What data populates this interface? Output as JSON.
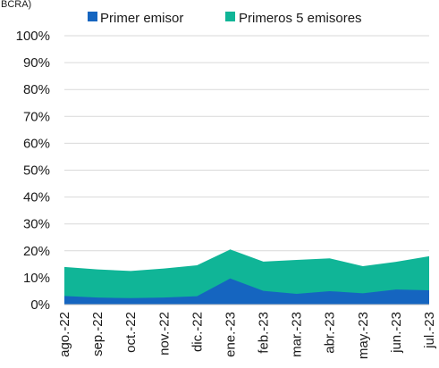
{
  "chart_data": {
    "type": "area",
    "stacked": false,
    "title_fragment": "BCRA)",
    "categories": [
      "ago.-22",
      "sep.-22",
      "oct.-22",
      "nov.-22",
      "dic.-22",
      "ene.-23",
      "feb.-23",
      "mar.-23",
      "abr.-23",
      "may.-23",
      "jun.-23",
      "jul.-23"
    ],
    "series": [
      {
        "name": "Primer emisor",
        "color": "#1565c0",
        "values": [
          3.2,
          2.6,
          2.4,
          2.6,
          3.1,
          9.7,
          5.1,
          4.0,
          5.0,
          4.2,
          5.6,
          5.3
        ]
      },
      {
        "name": "Primeros 5 emisores",
        "color": "#10b597",
        "values": [
          14.0,
          13.1,
          12.5,
          13.4,
          14.6,
          20.5,
          16.0,
          16.6,
          17.2,
          14.3,
          15.9,
          18.0
        ]
      }
    ],
    "ylim": [
      0,
      100
    ],
    "yticks": [
      "0%",
      "10%",
      "20%",
      "30%",
      "40%",
      "50%",
      "60%",
      "70%",
      "80%",
      "90%",
      "100%"
    ],
    "grid": true,
    "legend_position": "top"
  }
}
